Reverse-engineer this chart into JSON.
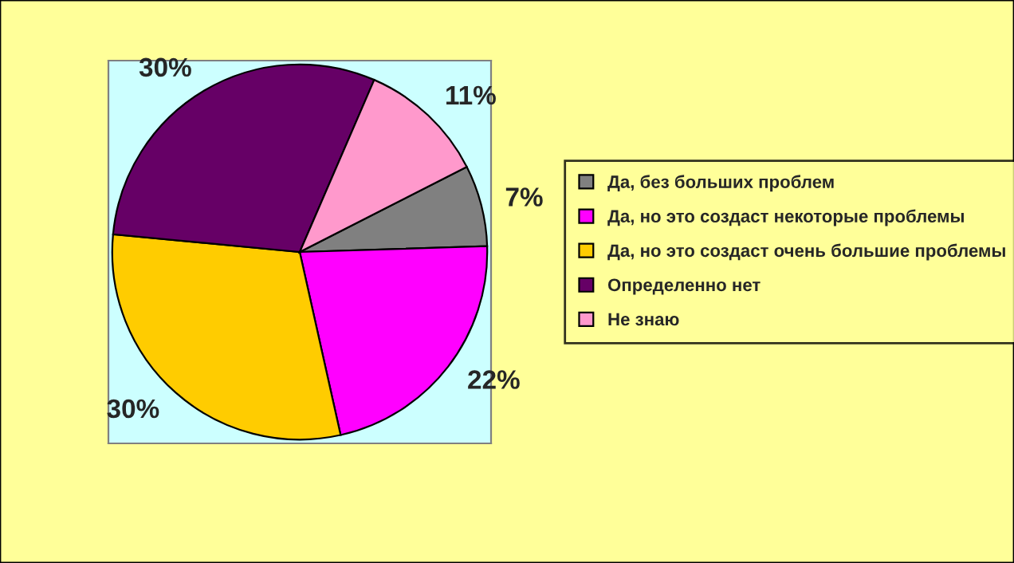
{
  "chart_data": {
    "type": "pie",
    "categories": [
      "Да, без больших проблем",
      "Да, но это создаст некоторые проблемы",
      "Да, но это создаст очень большие проблемы",
      "Определенно нет",
      "Не знаю"
    ],
    "values": [
      7,
      22,
      30,
      30,
      11
    ],
    "value_labels": [
      "7%",
      "22%",
      "30%",
      "30%",
      "11%"
    ],
    "colors": [
      "#808080",
      "#ff00ff",
      "#ffcc00",
      "#660066",
      "#ff99cc"
    ],
    "legend": "right"
  }
}
